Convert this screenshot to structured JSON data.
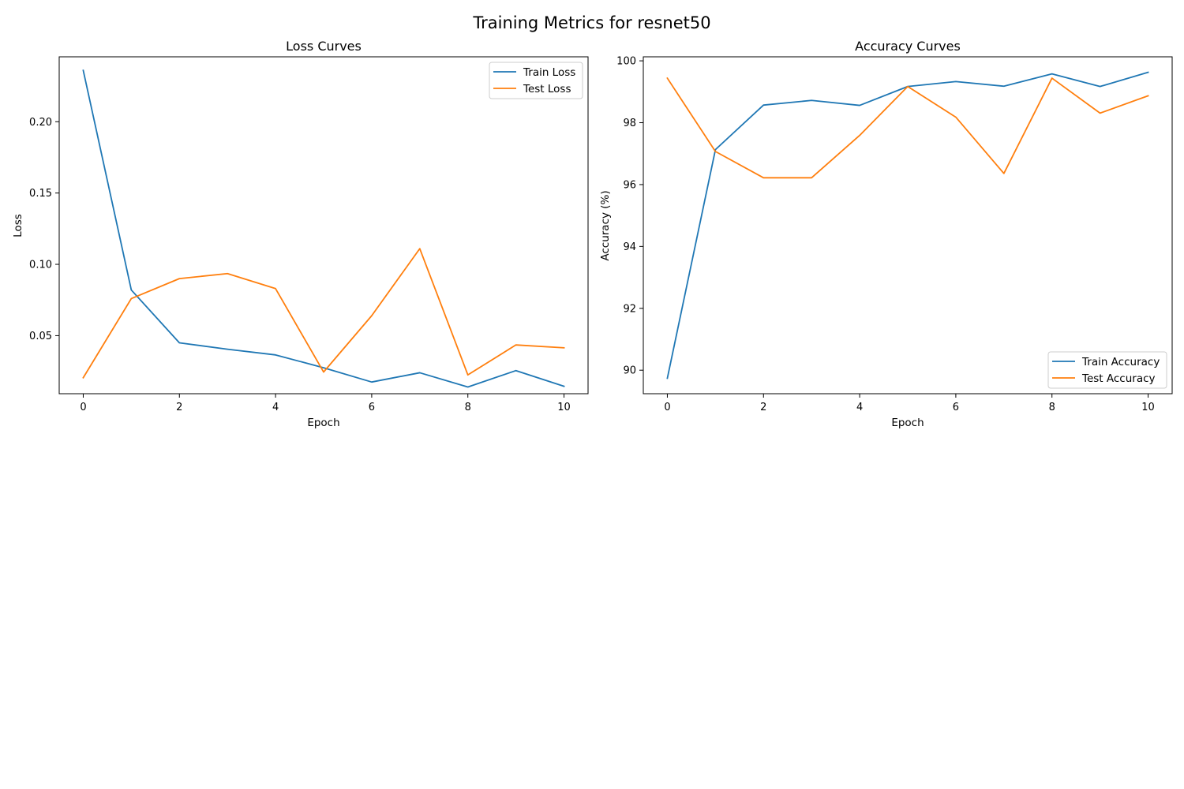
{
  "figure": {
    "title": "Training Metrics for resnet50"
  },
  "colors": {
    "train": "#1f77b4",
    "test": "#ff7f0e",
    "axis": "#000000",
    "legend_border": "#cccccc"
  },
  "chart_data": [
    {
      "type": "line",
      "title": "Loss Curves",
      "xlabel": "Epoch",
      "ylabel": "Loss",
      "x": [
        0,
        1,
        2,
        3,
        4,
        5,
        6,
        7,
        8,
        9,
        10
      ],
      "xlim": [
        -0.5,
        10.5
      ],
      "ylim": [
        0.0093,
        0.2455
      ],
      "xticks": [
        0,
        2,
        4,
        6,
        8,
        10
      ],
      "yticks": [
        0.05,
        0.1,
        0.15,
        0.2
      ],
      "ytick_labels": [
        "0.05",
        "0.10",
        "0.15",
        "0.20"
      ],
      "grid": false,
      "legend_position": "top-right",
      "series": [
        {
          "name": "Train Loss",
          "color": "#1f77b4",
          "values": [
            0.236,
            0.082,
            0.045,
            0.0405,
            0.0365,
            0.0275,
            0.0175,
            0.024,
            0.014,
            0.0255,
            0.0145
          ]
        },
        {
          "name": "Test Loss",
          "color": "#ff7f0e",
          "values": [
            0.0205,
            0.076,
            0.09,
            0.0935,
            0.083,
            0.0245,
            0.064,
            0.111,
            0.0225,
            0.0435,
            0.0415
          ]
        }
      ]
    },
    {
      "type": "line",
      "title": "Accuracy Curves",
      "xlabel": "Epoch",
      "ylabel": "Accuracy (%)",
      "x": [
        0,
        1,
        2,
        3,
        4,
        5,
        6,
        7,
        8,
        9,
        10
      ],
      "xlim": [
        -0.5,
        10.5
      ],
      "ylim": [
        89.24,
        100.13
      ],
      "xticks": [
        0,
        2,
        4,
        6,
        8,
        10
      ],
      "yticks": [
        90,
        92,
        94,
        96,
        98,
        100
      ],
      "ytick_labels": [
        "90",
        "92",
        "94",
        "96",
        "98",
        "100"
      ],
      "grid": false,
      "legend_position": "bottom-right",
      "series": [
        {
          "name": "Train Accuracy",
          "color": "#1f77b4",
          "values": [
            89.74,
            97.13,
            98.57,
            98.72,
            98.56,
            99.17,
            99.33,
            99.18,
            99.58,
            99.17,
            99.63
          ]
        },
        {
          "name": "Test Accuracy",
          "color": "#ff7f0e",
          "values": [
            99.44,
            97.07,
            96.22,
            96.22,
            97.59,
            99.17,
            98.18,
            96.36,
            99.44,
            98.31,
            98.87
          ]
        }
      ]
    }
  ]
}
